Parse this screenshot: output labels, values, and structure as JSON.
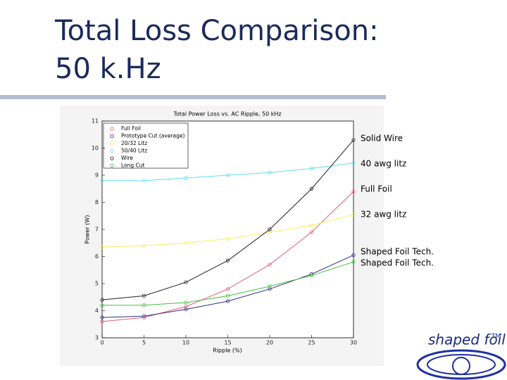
{
  "slide": {
    "title": [
      "Total Loss Comparison:",
      "50 k.Hz"
    ],
    "annotations": [
      "Solid Wire",
      "40 awg litz",
      "Full Foil",
      "32 awg litz",
      "Shaped Foil Tech.",
      "Shaped Foil Tech."
    ],
    "logo": {
      "text": "shaped foil",
      "mark": "TM"
    }
  },
  "chart_data": {
    "type": "line",
    "title": "Total Power Loss vs. AC Ripple, 50 kHz",
    "x_label": "Ripple (%)",
    "y_label": "Power (W)",
    "x": [
      0,
      5,
      10,
      15,
      20,
      25,
      30
    ],
    "xlim": [
      0,
      30
    ],
    "xticks": [
      0,
      5,
      10,
      15,
      20,
      25,
      30
    ],
    "ylim": [
      3,
      11
    ],
    "yticks": [
      3,
      4,
      5,
      6,
      7,
      8,
      9,
      10,
      11
    ],
    "legend": "upper left",
    "series": [
      {
        "name": "Full Foil",
        "color": "#e0607a",
        "values": [
          3.6,
          3.75,
          4.15,
          4.8,
          5.7,
          6.9,
          8.4
        ]
      },
      {
        "name": "Prototype Cut (average)",
        "color": "#303080",
        "values": [
          3.75,
          3.8,
          4.05,
          4.35,
          4.8,
          5.35,
          6.05
        ]
      },
      {
        "name": "20/32 Litz",
        "color": "#f0f060",
        "values": [
          6.35,
          6.4,
          6.5,
          6.65,
          6.9,
          7.15,
          7.55
        ]
      },
      {
        "name": "50/40 Litz",
        "color": "#60e0f0",
        "values": [
          8.8,
          8.8,
          8.9,
          9.0,
          9.1,
          9.25,
          9.45
        ]
      },
      {
        "name": "Wire",
        "color": "#202020",
        "values": [
          4.4,
          4.55,
          5.05,
          5.85,
          7.0,
          8.5,
          10.3
        ]
      },
      {
        "name": "Long Cut",
        "color": "#40c040",
        "values": [
          4.2,
          4.2,
          4.3,
          4.55,
          4.9,
          5.3,
          5.8
        ]
      }
    ]
  }
}
